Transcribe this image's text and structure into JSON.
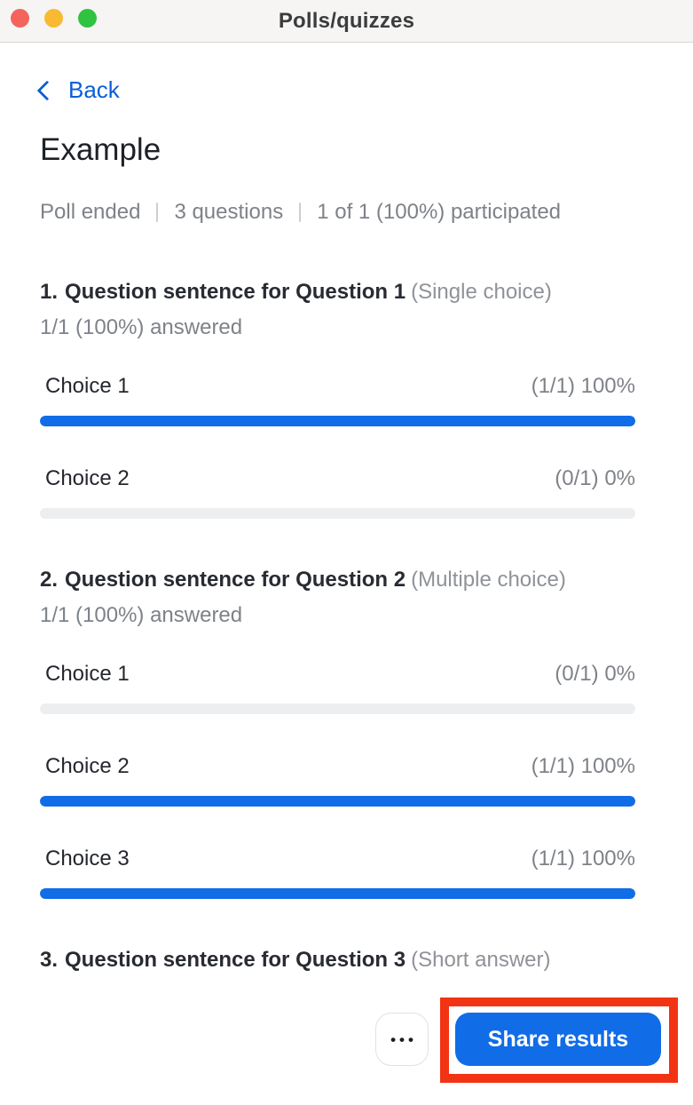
{
  "window": {
    "title": "Polls/quizzes"
  },
  "titlebar_icons": [
    "close-traffic-light",
    "minimize-traffic-light",
    "zoom-traffic-light"
  ],
  "nav": {
    "back_label": "Back"
  },
  "poll": {
    "title": "Example",
    "meta": {
      "status": "Poll ended",
      "question_count": "3 questions",
      "participation": "1 of 1 (100%) participated"
    },
    "questions": [
      {
        "number": "1.",
        "text": "Question sentence for Question 1",
        "type": "(Single choice)",
        "answered": "1/1 (100%) answered",
        "choices": [
          {
            "label": "Choice 1",
            "stat": "(1/1) 100%",
            "percent": 100
          },
          {
            "label": "Choice 2",
            "stat": "(0/1) 0%",
            "percent": 0
          }
        ]
      },
      {
        "number": "2.",
        "text": "Question sentence for Question 2",
        "type": "(Multiple choice)",
        "answered": "1/1 (100%) answered",
        "choices": [
          {
            "label": "Choice 1",
            "stat": "(0/1) 0%",
            "percent": 0
          },
          {
            "label": "Choice 2",
            "stat": "(1/1) 100%",
            "percent": 100
          },
          {
            "label": "Choice 3",
            "stat": "(1/1) 100%",
            "percent": 100
          }
        ]
      },
      {
        "number": "3.",
        "text": "Question sentence for Question 3",
        "type": "(Short answer)"
      }
    ]
  },
  "footer": {
    "more_icon": "•••",
    "share_label": "Share results"
  },
  "colors": {
    "accent_blue": "#116ce8",
    "link_blue": "#0b5ed7",
    "bar_empty": "#eceef0",
    "annotation_red": "#f23314",
    "titlebar_bg": "#f6f5f3"
  }
}
